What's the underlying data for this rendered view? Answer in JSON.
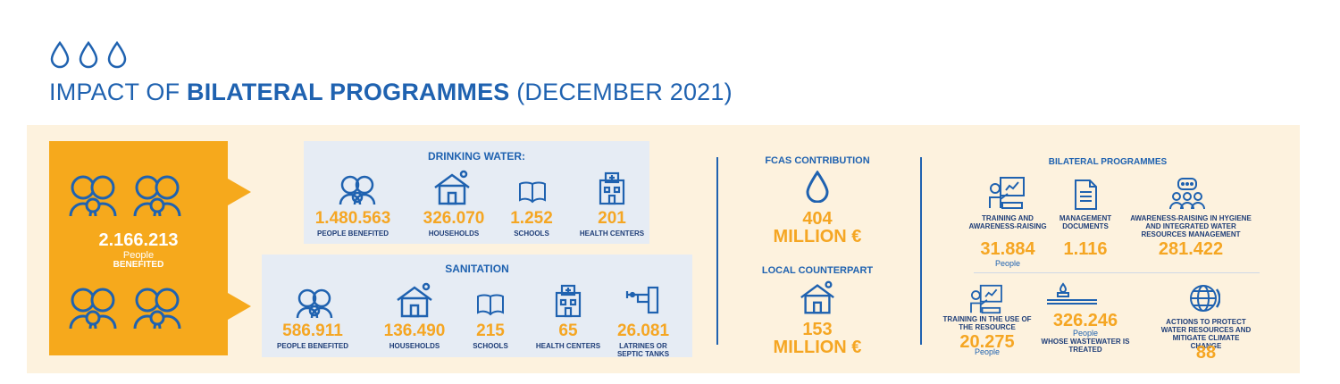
{
  "header": {
    "title_pre": "IMPACT OF ",
    "title_bold": "BILATERAL PROGRAMMES",
    "title_post": " (DECEMBER 2021)",
    "icon": "water-drops-icon"
  },
  "total": {
    "value": "2.166.213",
    "sub1": "People",
    "sub2": "BENEFITED"
  },
  "drinking_water": {
    "title": "DRINKING WATER:",
    "stats": [
      {
        "value": "1.480.563",
        "label": "PEOPLE BENEFITED",
        "icon": "people-icon"
      },
      {
        "value": "326.070",
        "label": "HOUSEHOLDS",
        "icon": "house-icon"
      },
      {
        "value": "1.252",
        "label": "SCHOOLS",
        "icon": "book-icon"
      },
      {
        "value": "201",
        "label": "HEALTH CENTERS",
        "icon": "hospital-icon"
      }
    ]
  },
  "sanitation": {
    "title": "SANITATION",
    "stats": [
      {
        "value": "586.911",
        "label": "PEOPLE BENEFITED",
        "icon": "people-icon"
      },
      {
        "value": "136.490",
        "label": "HOUSEHOLDS",
        "icon": "house-icon"
      },
      {
        "value": "215",
        "label": "SCHOOLS",
        "icon": "book-icon"
      },
      {
        "value": "65",
        "label": "HEALTH CENTERS",
        "icon": "hospital-icon"
      },
      {
        "value": "26.081",
        "label": "LATRINES OR SEPTIC TANKS",
        "icon": "toilet-icon"
      }
    ]
  },
  "fcas": {
    "title": "FCAS CONTRIBUTION",
    "value": "404",
    "unit": "MILLION €"
  },
  "local": {
    "title": "LOCAL COUNTERPART",
    "value": "153",
    "unit": "MILLION €"
  },
  "bilateral": {
    "title": "BILATERAL PROGRAMMES",
    "top": [
      {
        "label": "TRAINING AND AWARENESS-RAISING",
        "value": "31.884",
        "sub": "People",
        "icon": "training-icon"
      },
      {
        "label": "MANAGEMENT DOCUMENTS",
        "value": "1.116",
        "sub": "",
        "icon": "document-icon"
      },
      {
        "label": "AWARENESS-RAISING IN HYGIENE AND INTEGRATED WATER RESOURCES MANAGEMENT",
        "value": "281.422",
        "sub": "",
        "icon": "group-chat-icon"
      }
    ],
    "bottom": [
      {
        "label": "TRAINING IN THE USE OF THE RESOURCE",
        "value": "20.275",
        "sub": "People",
        "icon": "training-icon"
      },
      {
        "value": "326.246",
        "sub": "People",
        "label": "WHOSE WASTEWATER IS TREATED",
        "icon": "wastewater-icon"
      },
      {
        "label": "ACTIONS TO PROTECT WATER RESOURCES AND MITIGATE CLIMATE CHANGE",
        "value": "88",
        "icon": "globe-icon"
      }
    ]
  }
}
